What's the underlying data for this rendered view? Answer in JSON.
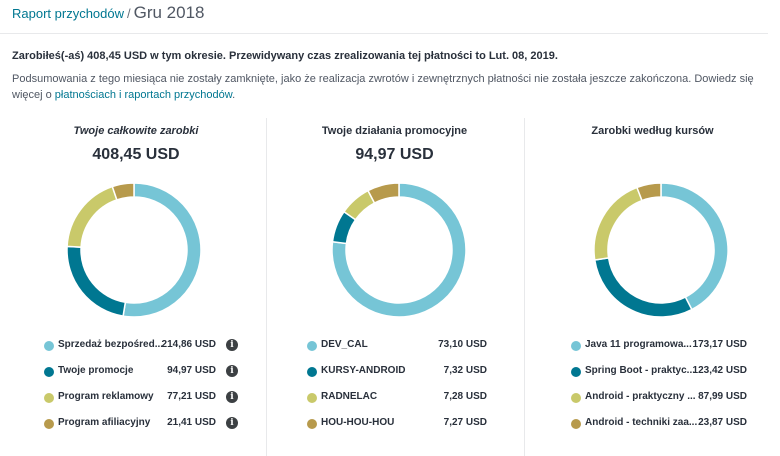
{
  "breadcrumb": {
    "parent": "Raport przychodów",
    "separator": "/",
    "current": "Gru 2018"
  },
  "summary": "Zarobiłeś(-aś) 408,45 USD w tym okresie. Przewidywany czas zrealizowania tej płatności to Lut. 08, 2019.",
  "notice": {
    "text": "Podsumowania z tego miesiąca nie zostały zamknięte, jako że realizacja zwrotów i zewnętrznych płatności nie została jeszcze zakończona. Dowiedz się więcej o ",
    "link": "płatnościach i raportach przychodów",
    "tail": "."
  },
  "colors": {
    "teal_light": "#76c5d6",
    "teal_dark": "#007791",
    "olive": "#c9c96a",
    "brown": "#b79a4c",
    "link": "#007791",
    "info": "#3c4043"
  },
  "chart_data": [
    {
      "type": "pie",
      "title": "Twoje całkowite zarobki",
      "total": "408,45 USD",
      "categories": [
        "Sprzedaż bezpośred...",
        "Twoje promocje",
        "Program reklamowy",
        "Program afiliacyjny"
      ],
      "values": [
        214.86,
        94.97,
        77.21,
        21.41
      ],
      "value_labels": [
        "214,86 USD",
        "94,97 USD",
        "77,21 USD",
        "21,41 USD"
      ],
      "colors": [
        "#76c5d6",
        "#007791",
        "#c9c96a",
        "#b79a4c"
      ],
      "info_icons": true
    },
    {
      "type": "pie",
      "title": "Twoje działania promocyjne",
      "total": "94,97 USD",
      "categories": [
        "DEV_CAL",
        "KURSY-ANDROID",
        "RADNELAC",
        "HOU-HOU-HOU"
      ],
      "values": [
        73.1,
        7.32,
        7.28,
        7.27
      ],
      "value_labels": [
        "73,10 USD",
        "7,32 USD",
        "7,28 USD",
        "7,27 USD"
      ],
      "colors": [
        "#76c5d6",
        "#007791",
        "#c9c96a",
        "#b79a4c"
      ],
      "info_icons": false
    },
    {
      "type": "pie",
      "title": "Zarobki według kursów",
      "total": "",
      "categories": [
        "Java 11 programowa...",
        "Spring Boot - praktyc...",
        "Android - praktyczny ...",
        "Android - techniki zaa..."
      ],
      "values": [
        173.17,
        123.42,
        87.99,
        23.87
      ],
      "value_labels": [
        "173,17 USD",
        "123,42 USD",
        "87,99 USD",
        "23,87 USD"
      ],
      "colors": [
        "#76c5d6",
        "#007791",
        "#c9c96a",
        "#b79a4c"
      ],
      "info_icons": false
    }
  ]
}
